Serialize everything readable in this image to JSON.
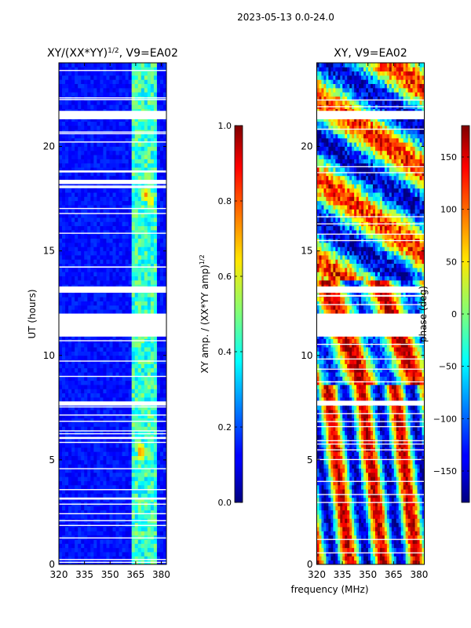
{
  "figure": {
    "suptitle": "2023-05-13 0.0-24.0",
    "shared_xlabel": "frequency (MHz)"
  },
  "chart_data": [
    {
      "type": "heatmap",
      "title": "XY/(XX*YY)",
      "title_exponent": "1/2",
      "title_suffix": ", V9=EA02",
      "xlabel": "",
      "ylabel": "UT (hours)",
      "xlim": [
        320,
        383
      ],
      "ylim": [
        0,
        24
      ],
      "x_ticks": [
        320,
        335,
        350,
        365,
        380
      ],
      "y_ticks": [
        0,
        5,
        10,
        15,
        20
      ],
      "colormap": "jet",
      "colorbar": {
        "label": "XY amp. / (XX*YY amp)",
        "label_exponent": "1/2",
        "range": [
          0.0,
          1.0
        ],
        "ticks": [
          "0.0",
          "0.2",
          "0.4",
          "0.6",
          "0.8",
          "1.0"
        ]
      },
      "data_gaps_hours": [
        [
          10.9,
          12.0
        ],
        [
          21.3,
          21.7
        ],
        [
          7.6,
          7.8
        ],
        [
          13.0,
          13.3
        ],
        [
          18.2,
          18.4
        ],
        [
          6.0,
          6.1
        ],
        [
          3.1,
          3.2
        ]
      ],
      "high_value_band_mhz": [
        361,
        377
      ],
      "hotspots": [
        {
          "freq_mhz": 367,
          "ut_hours": 5.3,
          "value": 0.8
        },
        {
          "freq_mhz": 370,
          "ut_hours": 17.6,
          "value": 0.75
        },
        {
          "freq_mhz": 373,
          "ut_hours": 17.3,
          "value": 0.7
        }
      ]
    },
    {
      "type": "heatmap",
      "title": "XY, V9=EA02",
      "xlabel": "frequency (MHz)",
      "ylabel": "",
      "xlim": [
        320,
        383
      ],
      "ylim": [
        0,
        24
      ],
      "x_ticks": [
        320,
        335,
        350,
        365,
        380
      ],
      "y_ticks": [
        0,
        5,
        10,
        15,
        20
      ],
      "colormap": "jet",
      "colorbar": {
        "label": "phase (deg)",
        "range": [
          -180,
          180
        ],
        "ticks": [
          "−150",
          "−100",
          "−50",
          "0",
          "50",
          "100",
          "150"
        ]
      },
      "data_gaps_hours": [
        [
          10.9,
          12.0
        ],
        [
          21.3,
          21.7
        ],
        [
          7.6,
          7.8
        ],
        [
          13.0,
          13.3
        ]
      ]
    }
  ]
}
